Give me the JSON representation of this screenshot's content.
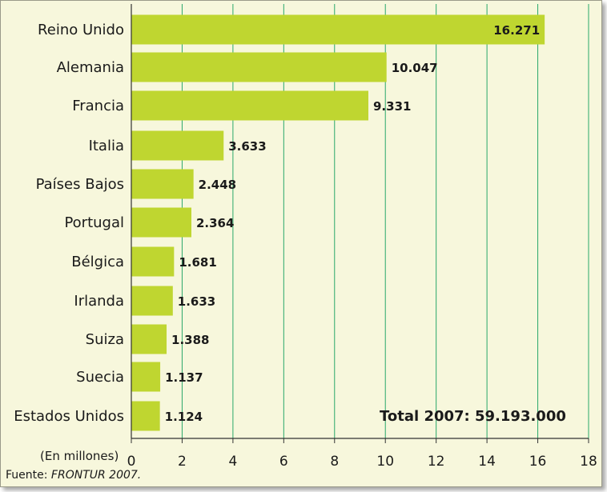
{
  "chart_data": {
    "type": "bar",
    "orientation": "horizontal",
    "categories": [
      "Reino Unido",
      "Alemania",
      "Francia",
      "Italia",
      "Países Bajos",
      "Portugal",
      "Bélgica",
      "Irlanda",
      "Suiza",
      "Suecia",
      "Estados Unidos"
    ],
    "values": [
      16.271,
      10.047,
      9.331,
      3.633,
      2.448,
      2.364,
      1.681,
      1.633,
      1.388,
      1.137,
      1.124
    ],
    "value_labels": [
      "16.271",
      "10.047",
      "9.331",
      "3.633",
      "2.448",
      "2.364",
      "1.681",
      "1.633",
      "1.388",
      "1.137",
      "1.124"
    ],
    "xlim": [
      0,
      18
    ],
    "xticks": [
      0,
      2,
      4,
      6,
      8,
      10,
      12,
      14,
      16,
      18
    ],
    "unit_label": "(En millones)",
    "annotation": "Total 2007: 59.193.000",
    "grid": "vertical",
    "colors": {
      "bar": "#bfd630",
      "grid": "#2aa86a",
      "background": "#f7f7dc"
    }
  },
  "source": {
    "prefix": "Fuente: ",
    "name": "FRONTUR 2007."
  }
}
